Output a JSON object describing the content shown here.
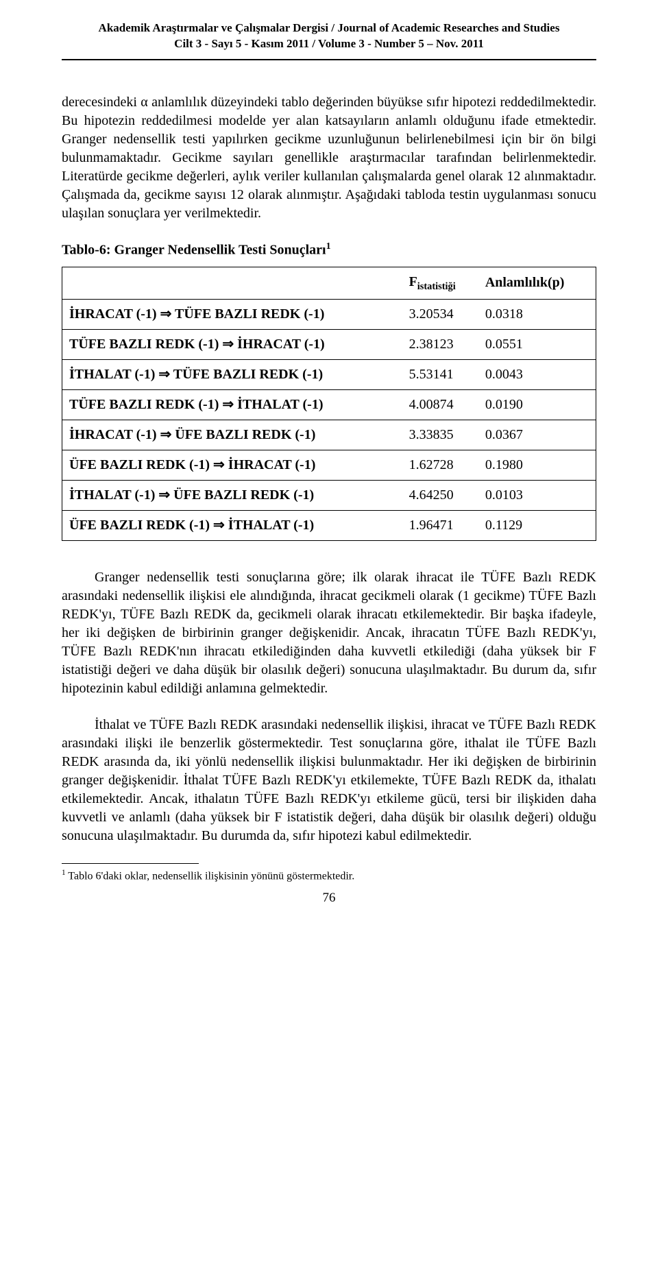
{
  "header": {
    "line1": "Akademik Araştırmalar ve Çalışmalar Dergisi  / Journal of Academic Researches and Studies",
    "line2": "Cilt 3 - Sayı 5 - Kasım 2011  / Volume 3 - Number 5 – Nov. 2011"
  },
  "paragraphs": {
    "p1": "derecesindeki α anlamlılık düzeyindeki tablo değerinden büyükse sıfır hipotezi reddedilmektedir. Bu hipotezin reddedilmesi modelde yer alan katsayıların anlamlı olduğunu ifade etmektedir. Granger nedensellik testi yapılırken gecikme uzunluğunun belirlenebilmesi için bir ön bilgi bulunmamaktadır. Gecikme sayıları genellikle araştırmacılar tarafından belirlenmektedir. Literatürde gecikme değerleri, aylık veriler kullanılan çalışmalarda genel olarak 12 alınmaktadır. Çalışmada da, gecikme sayısı 12 olarak alınmıştır. Aşağıdaki tabloda testin uygulanması sonucu ulaşılan sonuçlara yer verilmektedir.",
    "p2": "Granger nedensellik testi sonuçlarına göre; ilk olarak ihracat ile TÜFE Bazlı REDK arasındaki nedensellik ilişkisi ele alındığında, ihracat gecikmeli olarak (1 gecikme) TÜFE Bazlı REDK'yı, TÜFE Bazlı REDK da, gecikmeli olarak ihracatı etkilemektedir. Bir başka ifadeyle, her iki değişken de birbirinin granger değişkenidir. Ancak, ihracatın TÜFE Bazlı REDK'yı, TÜFE Bazlı REDK'nın ihracatı etkilediğinden daha kuvvetli etkilediği (daha yüksek bir F istatistiği değeri ve daha düşük bir olasılık değeri) sonucuna ulaşılmaktadır. Bu durum da, sıfır hipotezinin kabul edildiği anlamına gelmektedir.",
    "p3": "İthalat ve TÜFE Bazlı REDK arasındaki nedensellik ilişkisi, ihracat ve TÜFE Bazlı REDK arasındaki ilişki ile benzerlik göstermektedir. Test sonuçlarına göre, ithalat ile TÜFE Bazlı REDK arasında da, iki yönlü nedensellik ilişkisi bulunmaktadır. Her iki değişken de birbirinin granger değişkenidir. İthalat TÜFE Bazlı REDK'yı etkilemekte, TÜFE Bazlı REDK da, ithalatı etkilemektedir. Ancak, ithalatın TÜFE Bazlı REDK'yı etkileme gücü, tersi bir ilişkiden daha kuvvetli ve anlamlı (daha yüksek bir F istatistik değeri, daha düşük bir olasılık değeri) olduğu sonucuna ulaşılmaktadır. Bu durumda da, sıfır hipotezi kabul edilmektedir."
  },
  "table": {
    "title_prefix": "Tablo-6:",
    "title_rest": " Granger Nedensellik Testi Sonuçları",
    "title_sup": "1",
    "head_col1": "",
    "head_col2_main": "F",
    "head_col2_sub": "istatistiği",
    "head_col3": "Anlamlılık(p)",
    "arrow": "⇒",
    "rows": [
      {
        "lhs": "İHRACAT (-1)",
        "rhs": "TÜFE BAZLI REDK (-1)",
        "f": "3.20534",
        "p": "0.0318"
      },
      {
        "lhs": "TÜFE BAZLI REDK (-1)",
        "rhs": "İHRACAT (-1)",
        "f": "2.38123",
        "p": "0.0551"
      },
      {
        "lhs": "İTHALAT (-1)",
        "rhs": "TÜFE BAZLI REDK (-1)",
        "f": "5.53141",
        "p": "0.0043"
      },
      {
        "lhs": "TÜFE BAZLI REDK (-1)",
        "rhs": "İTHALAT (-1)",
        "f": "4.00874",
        "p": "0.0190"
      },
      {
        "lhs": "İHRACAT (-1)",
        "rhs": "ÜFE BAZLI REDK (-1)",
        "f": "3.33835",
        "p": "0.0367"
      },
      {
        "lhs": "ÜFE BAZLI REDK (-1)",
        "rhs": "İHRACAT (-1)",
        "f": "1.62728",
        "p": "0.1980"
      },
      {
        "lhs": "İTHALAT (-1)",
        "rhs": "ÜFE BAZLI REDK (-1)",
        "f": "4.64250",
        "p": "0.0103"
      },
      {
        "lhs": "ÜFE BAZLI REDK (-1)",
        "rhs": "İTHALAT (-1)",
        "f": "1.96471",
        "p": "0.1129"
      }
    ]
  },
  "footnote": {
    "marker": "1",
    "text": " Tablo 6'daki oklar, nedensellik ilişkisinin yönünü göstermektedir."
  },
  "pageNumber": "76"
}
